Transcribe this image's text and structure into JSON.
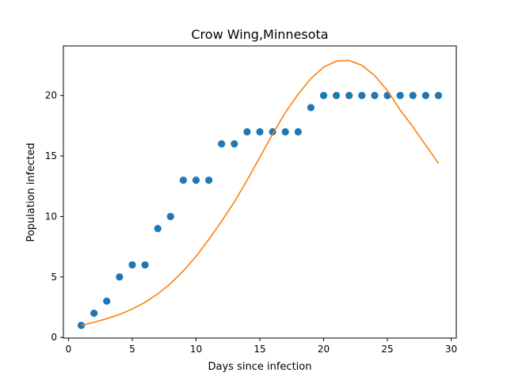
{
  "chart_data": {
    "type": "scatter",
    "title": "Crow Wing,Minnesota",
    "xlabel": "Days since infection",
    "ylabel": "Population infected",
    "xlim": [
      -0.4,
      30.4
    ],
    "ylim": [
      -0.05,
      24.1
    ],
    "xticks": [
      0,
      5,
      10,
      15,
      20,
      25,
      30
    ],
    "yticks": [
      0,
      5,
      10,
      15,
      20
    ],
    "grid": false,
    "colors": {
      "points": "#1f77b4",
      "fit": "#ff7f0e"
    },
    "series": [
      {
        "type": "scatter",
        "x": [
          1,
          2,
          3,
          4,
          5,
          6,
          7,
          8,
          9,
          10,
          11,
          12,
          13,
          14,
          15,
          16,
          17,
          18,
          19,
          20,
          21,
          22,
          23,
          24,
          25,
          26,
          27,
          28,
          29
        ],
        "y": [
          1,
          2,
          3,
          5,
          6,
          6,
          9,
          10,
          13,
          13,
          13,
          16,
          16,
          17,
          17,
          17,
          17,
          17,
          19,
          20,
          20,
          20,
          20,
          20,
          20,
          20,
          20,
          20,
          20
        ]
      },
      {
        "type": "line",
        "x": [
          1,
          2,
          3,
          4,
          5,
          6,
          7,
          8,
          9,
          10,
          11,
          12,
          13,
          14,
          15,
          16,
          17,
          18,
          19,
          20,
          21,
          22,
          23,
          24,
          25,
          26,
          27,
          28,
          29
        ],
        "y": [
          1.0,
          1.25,
          1.55,
          1.9,
          2.35,
          2.9,
          3.6,
          4.45,
          5.5,
          6.7,
          8.1,
          9.6,
          11.2,
          13.0,
          14.9,
          16.8,
          18.6,
          20.1,
          21.4,
          22.35,
          22.85,
          22.9,
          22.5,
          21.65,
          20.4,
          18.8,
          17.4,
          15.9,
          14.4
        ]
      }
    ]
  }
}
